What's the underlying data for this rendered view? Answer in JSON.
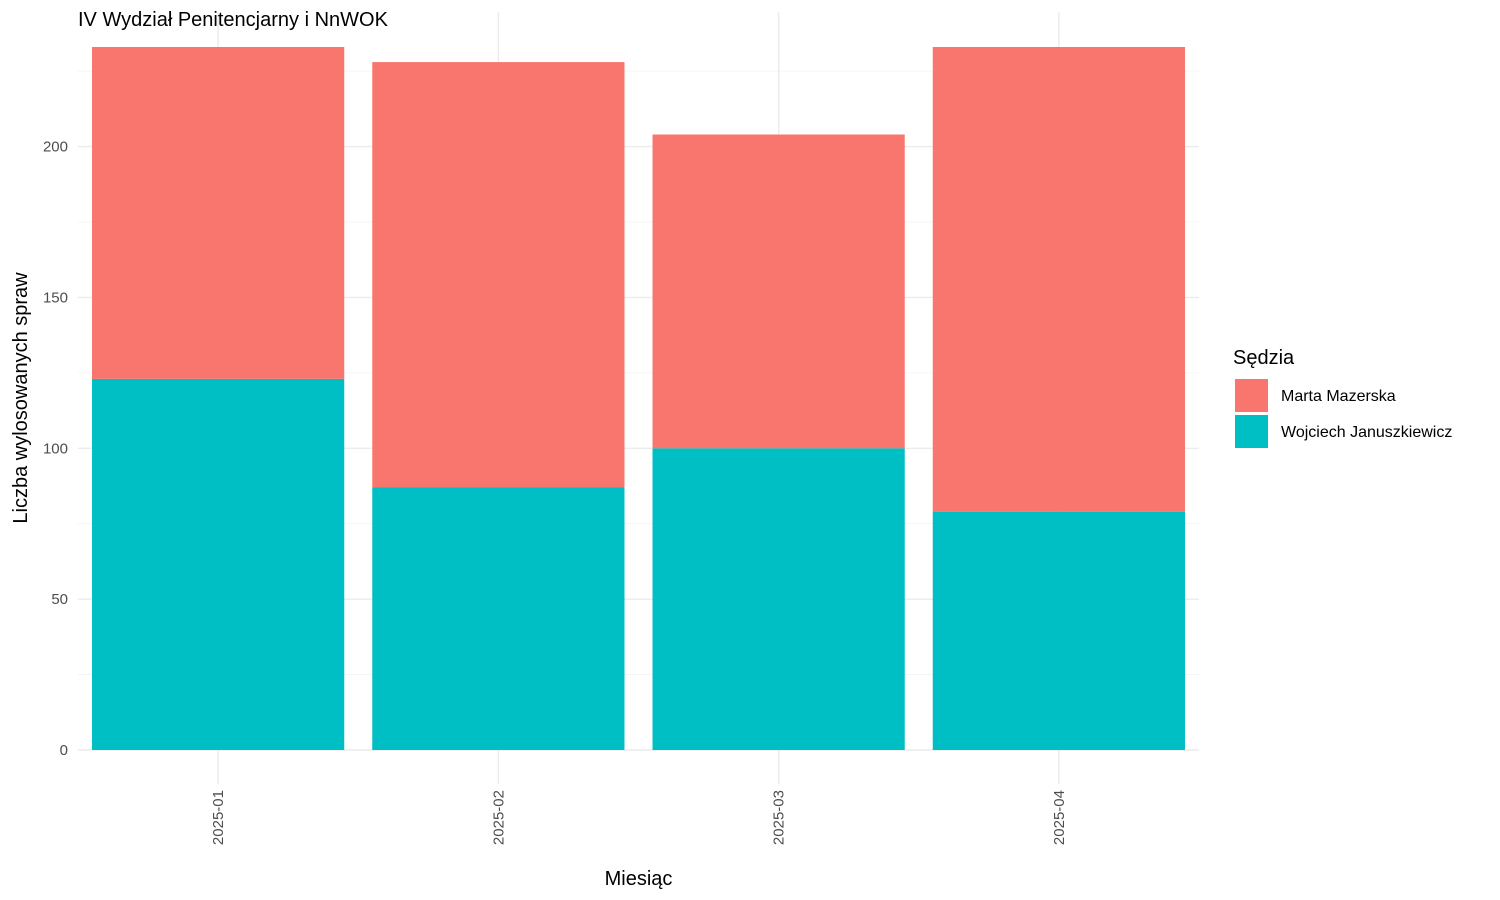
{
  "chart_data": {
    "type": "bar",
    "stacked": true,
    "title": "IV Wydział Penitencjarny i NnWOK",
    "xlabel": "Miesiąc",
    "ylabel": "Liczba wylosowanych spraw",
    "categories": [
      "2025-01",
      "2025-02",
      "2025-03",
      "2025-04"
    ],
    "series": [
      {
        "name": "Wojciech Januszkiewicz",
        "color": "#00BFC4",
        "values": [
          123,
          87,
          100,
          79
        ]
      },
      {
        "name": "Marta Mazerska",
        "color": "#F8766D",
        "values": [
          110,
          141,
          104,
          154
        ]
      }
    ],
    "ylim": [
      0,
      233
    ],
    "yticks": [
      0,
      50,
      100,
      150,
      200
    ],
    "grid": true,
    "legend": {
      "title": "Sędzia",
      "position": "right",
      "entries": [
        "Marta Mazerska",
        "Wojciech Januszkiewicz"
      ]
    }
  }
}
